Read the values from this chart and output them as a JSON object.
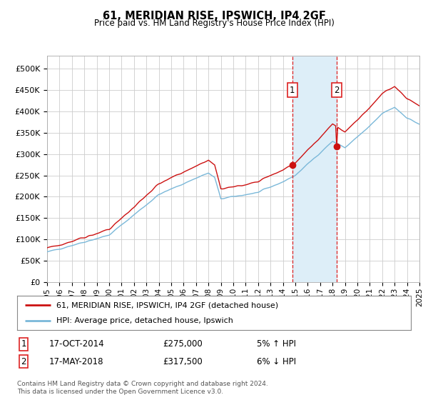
{
  "title": "61, MERIDIAN RISE, IPSWICH, IP4 2GF",
  "subtitle": "Price paid vs. HM Land Registry's House Price Index (HPI)",
  "hpi_color": "#7ab8d9",
  "price_color": "#cc1111",
  "dot_color": "#cc1111",
  "background_color": "#ffffff",
  "plot_bg_color": "#ffffff",
  "grid_color": "#cccccc",
  "shade_color": "#ddeef8",
  "vline_color": "#dd2222",
  "marker1_date_idx": 237,
  "marker2_date_idx": 280,
  "legend_entry1": "61, MERIDIAN RISE, IPSWICH, IP4 2GF (detached house)",
  "legend_entry2": "HPI: Average price, detached house, Ipswich",
  "footer": "Contains HM Land Registry data © Crown copyright and database right 2024.\nThis data is licensed under the Open Government Licence v3.0.",
  "ylabel_ticks": [
    "£0",
    "£50K",
    "£100K",
    "£150K",
    "£200K",
    "£250K",
    "£300K",
    "£350K",
    "£400K",
    "£450K",
    "£500K"
  ],
  "ytick_values": [
    0,
    50000,
    100000,
    150000,
    200000,
    250000,
    300000,
    350000,
    400000,
    450000,
    500000
  ],
  "ylim": [
    0,
    530000
  ],
  "sale1_value": 275000,
  "sale2_value": 317500,
  "start_year": 1995,
  "end_year": 2025
}
